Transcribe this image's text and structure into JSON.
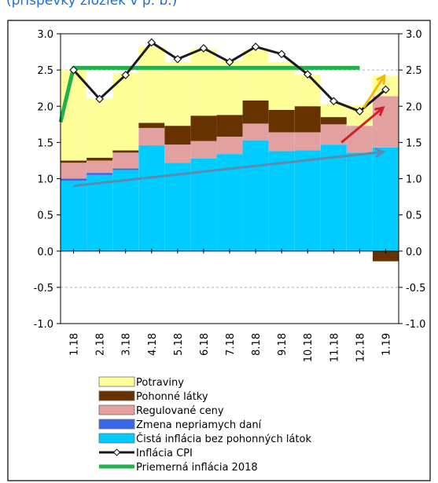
{
  "caption": "(príspevky zložiek v p. b.)",
  "chart_data": {
    "type": "bar",
    "stacked": true,
    "categories": [
      "1.18",
      "2.18",
      "3.18",
      "4.18",
      "5.18",
      "6.18",
      "7.18",
      "8.18",
      "9.18",
      "10.18",
      "11.18",
      "12.18",
      "1.19"
    ],
    "ylim": [
      -1.0,
      3.0
    ],
    "yticks": [
      "3.0",
      "2.5",
      "2.0",
      "1.5",
      "1.0",
      "0.5",
      "0.0",
      "-0.5",
      "-1.0"
    ],
    "grid": true,
    "legend_position": "bottom",
    "series": [
      {
        "name": "Čistá inflácia bez pohonných látok",
        "color": "#00ccff",
        "values": [
          0.97,
          1.05,
          1.12,
          1.46,
          1.22,
          1.28,
          1.34,
          1.53,
          1.38,
          1.39,
          1.47,
          1.36,
          1.43
        ]
      },
      {
        "name": "Zmena nepriamych daní",
        "color": "#3a66e8",
        "values": [
          0.03,
          0.03,
          0.02,
          0.0,
          0.0,
          0.0,
          0.0,
          0.0,
          0.0,
          0.0,
          0.0,
          0.0,
          0.0
        ]
      },
      {
        "name": "Regulované ceny",
        "color": "#e3a0a0",
        "values": [
          0.22,
          0.17,
          0.22,
          0.24,
          0.25,
          0.24,
          0.24,
          0.23,
          0.26,
          0.25,
          0.28,
          0.37,
          0.71
        ]
      },
      {
        "name": "Pohonné látky",
        "color": "#663300",
        "values": [
          0.03,
          0.04,
          0.03,
          0.07,
          0.26,
          0.35,
          0.3,
          0.32,
          0.31,
          0.36,
          0.1,
          0.0,
          -0.14
        ]
      },
      {
        "name": "Potraviny",
        "color": "#ffff99",
        "values": [
          1.25,
          0.81,
          1.07,
          1.05,
          0.88,
          0.92,
          0.75,
          0.69,
          0.66,
          0.44,
          0.18,
          0.29,
          0.28
        ]
      }
    ],
    "lines": [
      {
        "name": "Inflácia CPI",
        "color": "#1a1a1a",
        "values": [
          2.5,
          2.1,
          2.43,
          2.88,
          2.65,
          2.8,
          2.61,
          2.82,
          2.72,
          2.44,
          2.07,
          1.93,
          2.23
        ]
      },
      {
        "name": "Priemerná inflácia 2018",
        "color": "#22b14c",
        "values": [
          2.53,
          2.53,
          2.53,
          2.53,
          2.53,
          2.53,
          2.53,
          2.53,
          2.53,
          2.53,
          2.53,
          2.53
        ]
      }
    ],
    "arrows": [
      {
        "color": "#5b8cb0",
        "from": [
          0.5,
          0.9
        ],
        "to": [
          12.4,
          1.37
        ]
      },
      {
        "color": "#d0202a",
        "from": [
          10.8,
          1.5
        ],
        "to": [
          12.4,
          1.98
        ]
      },
      {
        "color": "#f5b800",
        "from": [
          11.65,
          1.98
        ],
        "to": [
          12.45,
          2.42
        ]
      }
    ]
  }
}
